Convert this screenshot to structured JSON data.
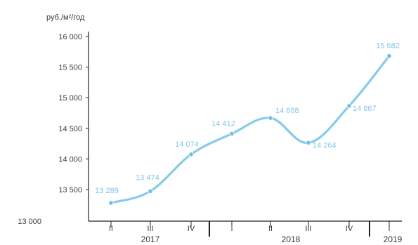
{
  "chart_data": {
    "type": "line",
    "ylabel": "руб./м²/год",
    "ylim": [
      13000,
      16000
    ],
    "yticks": [
      16000,
      15500,
      15000,
      14500,
      14000,
      13500,
      13000
    ],
    "ytick_labels": [
      "16 000",
      "15 500",
      "15 000",
      "14 500",
      "14 000",
      "13 500",
      "13 000"
    ],
    "categories": [
      "II",
      "III",
      "IV",
      "I",
      "II",
      "III",
      "IV",
      "I"
    ],
    "x_axis_labels": [
      "II",
      "III",
      "IV",
      "I",
      "II",
      "III",
      "IV",
      "I"
    ],
    "x_groups": [
      "2017",
      "2018",
      "2019"
    ],
    "series": [
      {
        "values": [
          13289,
          13474,
          14074,
          14412,
          14668,
          14264,
          14867,
          15682
        ],
        "value_labels": [
          "13 289",
          "13 474",
          "14 074",
          "14 412",
          "14 668",
          "14 264",
          "14 867",
          "15 682"
        ]
      }
    ],
    "grid": false,
    "legend": "none",
    "colors": {
      "line": "#86cbea",
      "marker": "#6fbfe3",
      "label": "#7fc6e7",
      "axis": "#222222"
    }
  }
}
